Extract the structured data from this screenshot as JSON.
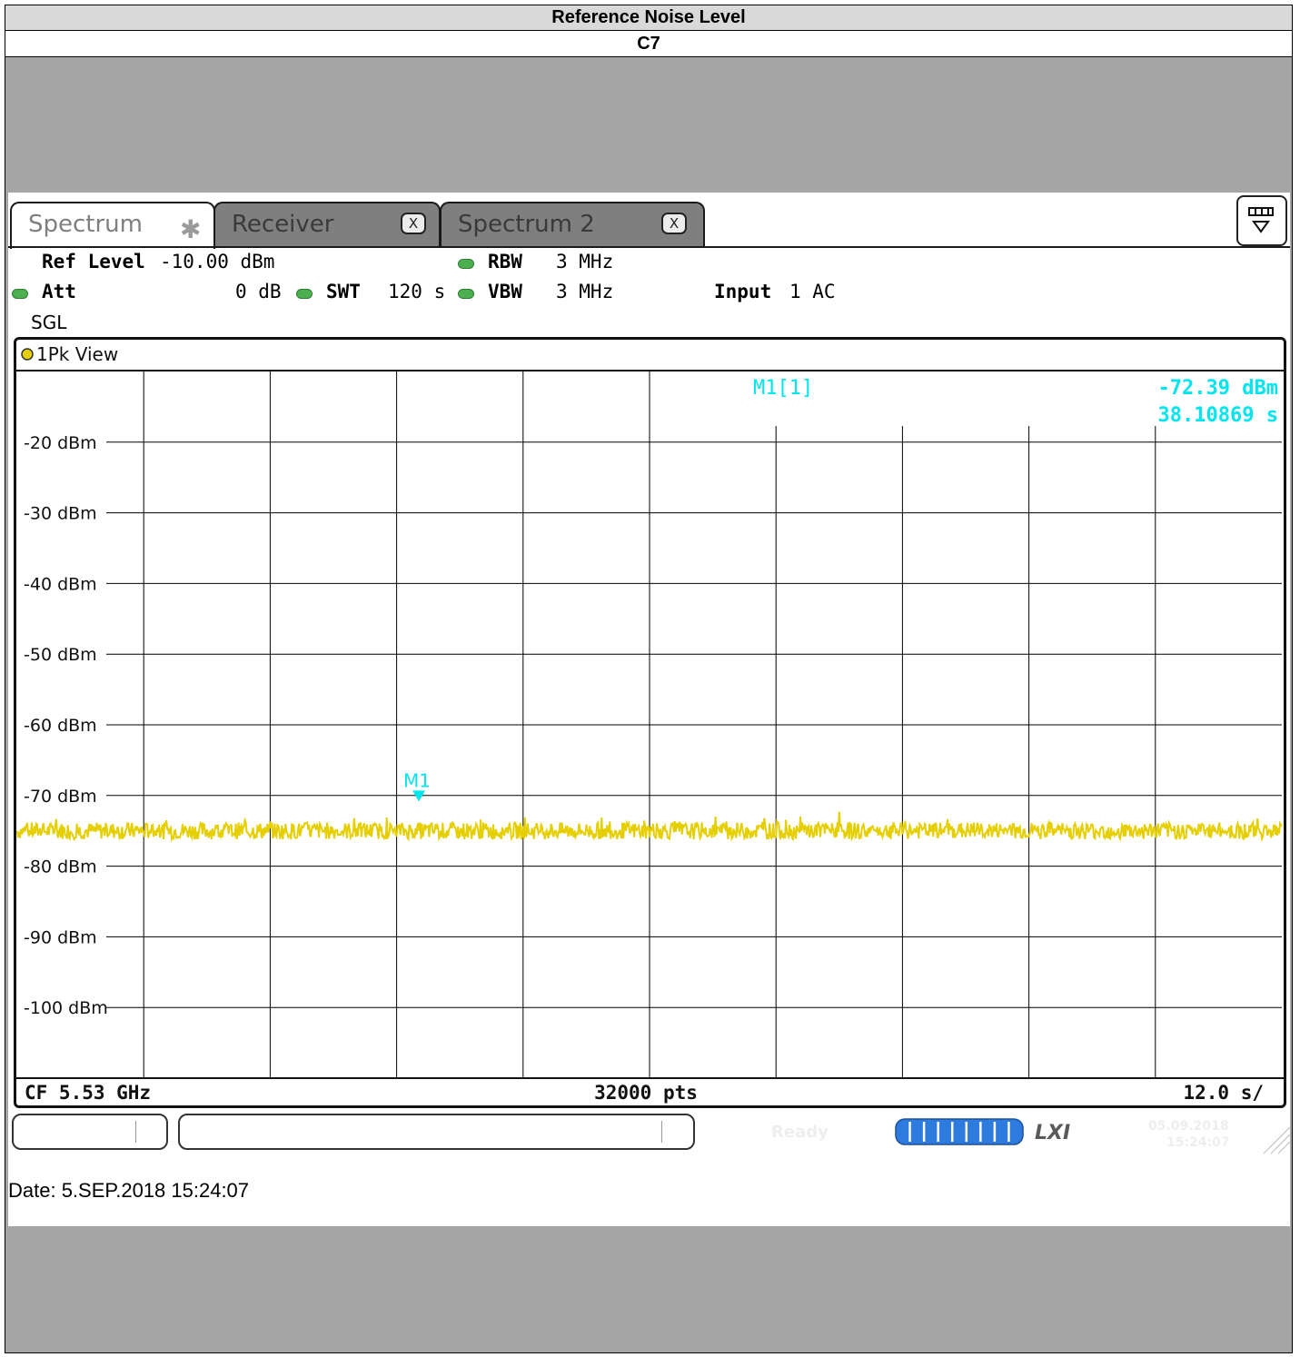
{
  "header": {
    "title": "Reference Noise Level",
    "subtitle": "C7"
  },
  "tabs": [
    {
      "label": "Spectrum",
      "icon": "star-icon"
    },
    {
      "label": "Receiver",
      "close": "X"
    },
    {
      "label": "Spectrum 2",
      "close": "X"
    }
  ],
  "params": {
    "ref_level_label": "Ref Level",
    "ref_level_value": "-10.00 dBm",
    "att_label": "Att",
    "att_value": "0 dB",
    "swt_label": "SWT",
    "swt_value": "120 s",
    "rbw_label": "RBW",
    "rbw_value": "3 MHz",
    "vbw_label": "VBW",
    "vbw_value": "3 MHz",
    "input_label": "Input",
    "input_value": "1 AC",
    "mode": "SGL"
  },
  "view": {
    "title": "1Pk View"
  },
  "marker": {
    "readout_label": "M1[1]",
    "readout_level": "-72.39 dBm",
    "readout_time": "38.10869 s",
    "label": "M1"
  },
  "footer": {
    "cf": "CF 5.53 GHz",
    "pts": "32000 pts",
    "span": "12.0 s/"
  },
  "status": {
    "ready": "Ready",
    "date_small": "05.09.2018",
    "time_small": "15:24:07"
  },
  "date_line": "Date: 5.SEP.2018  15:24:07",
  "colors": {
    "trace": "#e6cf00",
    "marker": "#00e5ee",
    "grid": "#000000"
  },
  "chart_data": {
    "type": "line",
    "ylim": [
      -110,
      -10
    ],
    "y_ticks": [
      "-20 dBm",
      "-30 dBm",
      "-40 dBm",
      "-50 dBm",
      "-60 dBm",
      "-70 dBm",
      "-80 dBm",
      "-90 dBm",
      "-100 dBm"
    ],
    "x_range_s": [
      0,
      120
    ],
    "trace_level_dbm": -75,
    "trace_noise_dbm": 1.2,
    "marker_x_s": 38.10869,
    "marker_y_dbm": -72.39,
    "grid": true
  }
}
